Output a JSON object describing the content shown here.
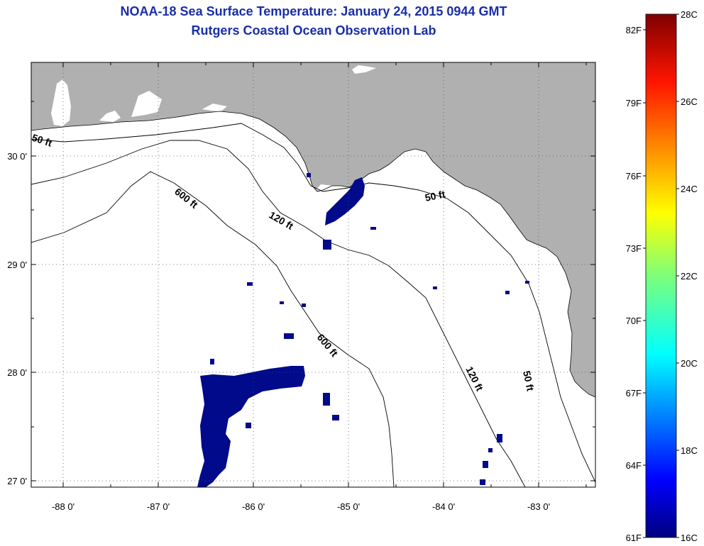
{
  "title": "NOAA-18 Sea Surface Temperature:  January 24, 2015 0944 GMT",
  "subtitle": "Rutgers Coastal Ocean Observation Lab",
  "x_ticks": [
    "-88 0'",
    "-87 0'",
    "-86 0'",
    "-85 0'",
    "-84 0'",
    "-83 0'"
  ],
  "y_ticks": [
    "30 0'",
    "29 0'",
    "28 0'",
    "27 0'"
  ],
  "contour_labels": [
    "50 ft",
    "600 ft",
    "120 ft",
    "50 ft",
    "600 ft",
    "120 ft",
    "50 ft"
  ],
  "colorbar": {
    "f_labels": [
      "82F",
      "79F",
      "76F",
      "73F",
      "70F",
      "67F",
      "64F",
      "61F"
    ],
    "c_labels": [
      "28C",
      "26C",
      "24C",
      "22C",
      "20C",
      "18C",
      "16C"
    ]
  },
  "colors": {
    "land": "#b0b0b0",
    "sea": "#ffffff",
    "sst_patch": "#000a8a",
    "title": "#1a2ea8"
  }
}
